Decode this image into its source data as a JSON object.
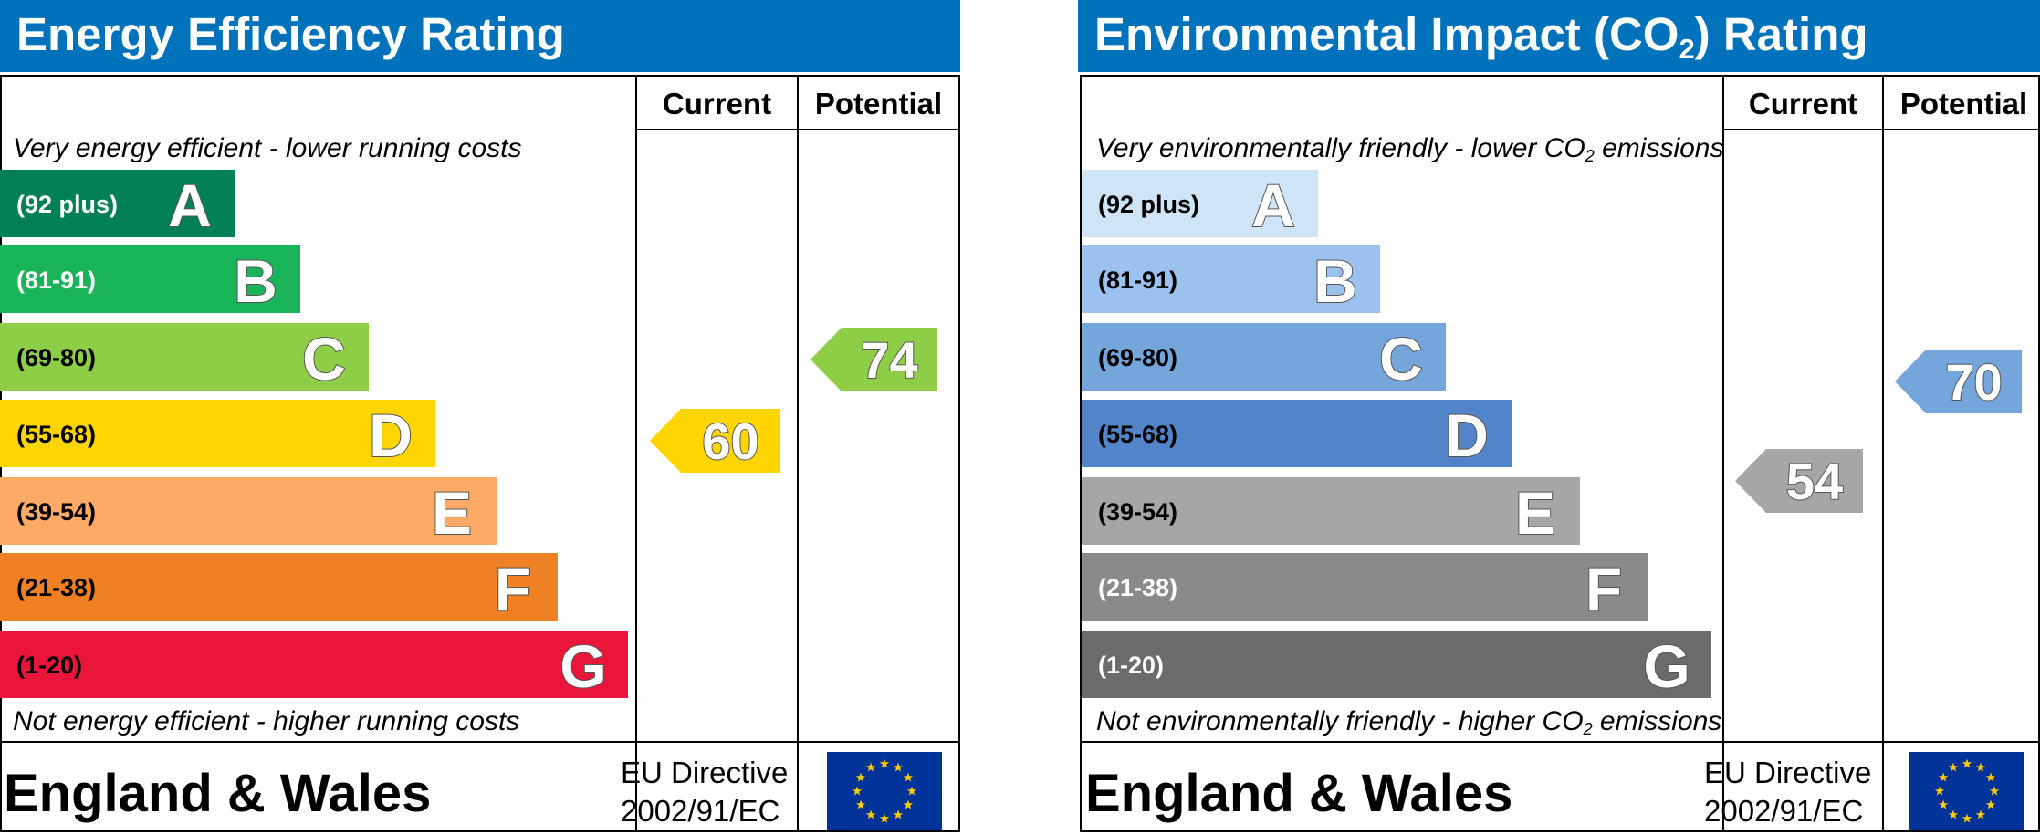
{
  "chart_data": [
    {
      "type": "bar",
      "title": "Energy Efficiency Rating",
      "columns": [
        "Current",
        "Potential"
      ],
      "top_note": "Very energy efficient - lower running costs",
      "bottom_note": "Not energy efficient - higher running costs",
      "bands": [
        {
          "letter": "A",
          "range": "(92 plus)",
          "color": "#008054",
          "text_color": "#ffffff"
        },
        {
          "letter": "B",
          "range": "(81-91)",
          "color": "#19b459",
          "text_color": "#ffffff"
        },
        {
          "letter": "C",
          "range": "(69-80)",
          "color": "#8dce46",
          "text_color": "#000000"
        },
        {
          "letter": "D",
          "range": "(55-68)",
          "color": "#ffd500",
          "text_color": "#000000"
        },
        {
          "letter": "E",
          "range": "(39-54)",
          "color": "#fcaa65",
          "text_color": "#000000"
        },
        {
          "letter": "F",
          "range": "(21-38)",
          "color": "#ef8023",
          "text_color": "#000000"
        },
        {
          "letter": "G",
          "range": "(1-20)",
          "color": "#e9153b",
          "text_color": "#000000"
        }
      ],
      "current": {
        "value": 60,
        "color": "#ffd500"
      },
      "potential": {
        "value": 74,
        "color": "#8dce46"
      },
      "footer": {
        "region": "England & Wales",
        "directive_line1": "EU Directive",
        "directive_line2": "2002/91/EC"
      }
    },
    {
      "type": "bar",
      "title_main": "Environmental Impact (CO",
      "title_sub": "2",
      "title_end": ") Rating",
      "columns": [
        "Current",
        "Potential"
      ],
      "top_note_main": "Very environmentally friendly - lower CO",
      "top_note_sub": "2",
      "top_note_end": " emissions",
      "bottom_note_main": "Not environmentally friendly - higher CO",
      "bottom_note_sub": "2",
      "bottom_note_end": " emissions",
      "bands": [
        {
          "letter": "A",
          "range": "(92 plus)",
          "color": "#cfe4f7",
          "text_color": "#000000"
        },
        {
          "letter": "B",
          "range": "(81-91)",
          "color": "#9bc2ee",
          "text_color": "#000000"
        },
        {
          "letter": "C",
          "range": "(69-80)",
          "color": "#74a5db",
          "text_color": "#000000"
        },
        {
          "letter": "D",
          "range": "(55-68)",
          "color": "#5184c8",
          "text_color": "#000000"
        },
        {
          "letter": "E",
          "range": "(39-54)",
          "color": "#a6a6a6",
          "text_color": "#000000"
        },
        {
          "letter": "F",
          "range": "(21-38)",
          "color": "#8a8a8a",
          "text_color": "#ffffff"
        },
        {
          "letter": "G",
          "range": "(1-20)",
          "color": "#6b6b6b",
          "text_color": "#ffffff"
        }
      ],
      "current": {
        "value": 54,
        "color": "#a6a6a6"
      },
      "potential": {
        "value": 70,
        "color": "#74a5db"
      },
      "footer": {
        "region": "England & Wales",
        "directive_line1": "EU Directive",
        "directive_line2": "2002/91/EC"
      }
    }
  ]
}
